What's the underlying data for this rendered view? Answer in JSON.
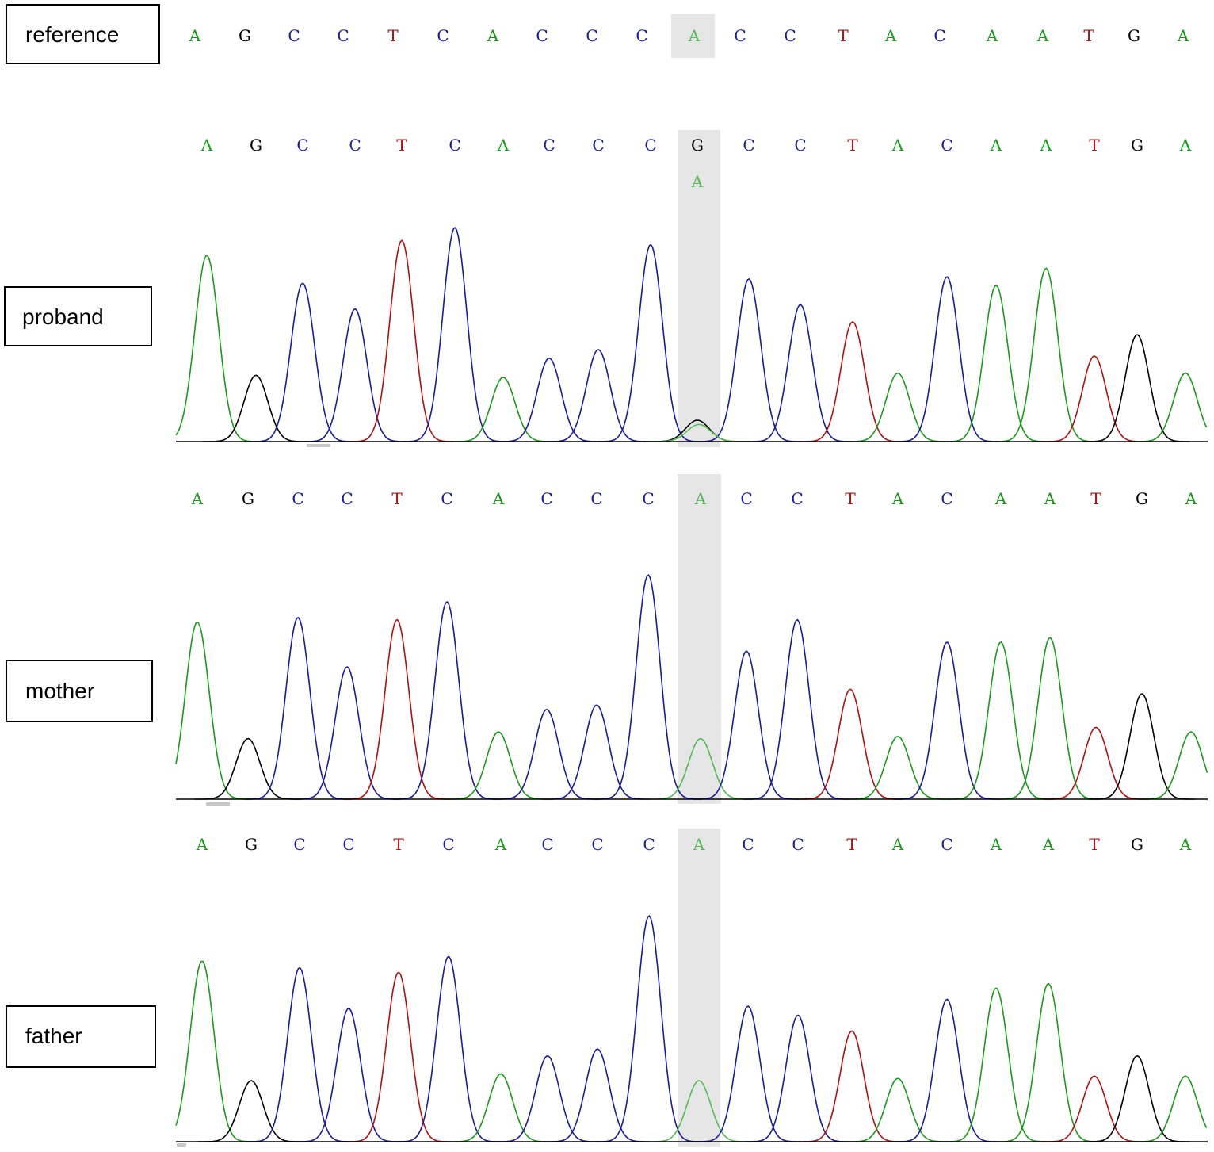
{
  "colors": {
    "A": "#1a9a1a",
    "C": "#1a1aa0",
    "G": "#000000",
    "T": "#b01010",
    "highlight": "#e6e6e6",
    "highlight_A": "#55bb55"
  },
  "chart_data": {
    "type": "chromatogram",
    "highlight_index": 10,
    "tracks": [
      {
        "id": "reference",
        "label": "reference",
        "sequence": [
          "A",
          "G",
          "C",
          "C",
          "T",
          "C",
          "A",
          "C",
          "C",
          "C",
          "A",
          "C",
          "C",
          "T",
          "A",
          "C",
          "A",
          "A",
          "T",
          "G",
          "A"
        ]
      },
      {
        "id": "proband",
        "label": "proband",
        "sequence": [
          "A",
          "G",
          "C",
          "C",
          "T",
          "C",
          "A",
          "C",
          "C",
          "C",
          "G",
          "C",
          "C",
          "T",
          "A",
          "C",
          "A",
          "A",
          "T",
          "G",
          "A"
        ],
        "secondary_call": {
          "index": 10,
          "base": "A"
        },
        "peak_heights": [
          0.87,
          0.31,
          0.74,
          0.62,
          0.94,
          1.0,
          0.3,
          0.39,
          0.43,
          0.92,
          0.1,
          0.76,
          0.64,
          0.56,
          0.32,
          0.77,
          0.73,
          0.81,
          0.4,
          0.5,
          0.32
        ]
      },
      {
        "id": "mother",
        "label": "mother",
        "sequence": [
          "A",
          "G",
          "C",
          "C",
          "T",
          "C",
          "A",
          "C",
          "C",
          "C",
          "A",
          "C",
          "C",
          "T",
          "A",
          "C",
          "A",
          "A",
          "T",
          "G",
          "A"
        ],
        "peak_heights": [
          0.79,
          0.27,
          0.81,
          0.59,
          0.8,
          0.88,
          0.3,
          0.4,
          0.42,
          1.0,
          0.27,
          0.66,
          0.8,
          0.49,
          0.28,
          0.7,
          0.7,
          0.72,
          0.32,
          0.47,
          0.3
        ]
      },
      {
        "id": "father",
        "label": "father",
        "sequence": [
          "A",
          "G",
          "C",
          "C",
          "T",
          "C",
          "A",
          "C",
          "C",
          "C",
          "A",
          "C",
          "C",
          "T",
          "A",
          "C",
          "A",
          "A",
          "T",
          "G",
          "A"
        ],
        "peak_heights": [
          0.8,
          0.27,
          0.77,
          0.59,
          0.75,
          0.82,
          0.3,
          0.38,
          0.41,
          1.0,
          0.27,
          0.6,
          0.56,
          0.49,
          0.28,
          0.63,
          0.68,
          0.7,
          0.29,
          0.38,
          0.29
        ]
      }
    ]
  }
}
